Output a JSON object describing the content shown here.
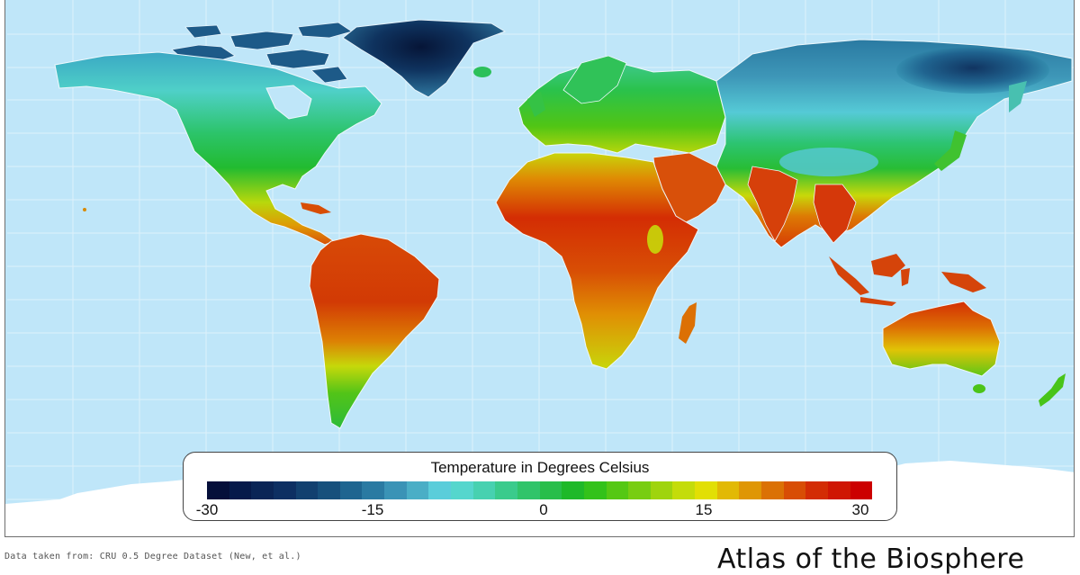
{
  "map": {
    "title": "Temperature in Degrees Celsius",
    "ocean_color": "#bfe6f9",
    "gridline_color": "#dff1fb",
    "antarctica_color": "#ffffff",
    "border_color": "#ffffff"
  },
  "legend": {
    "title": "Temperature in Degrees Celsius",
    "ticks": [
      {
        "label": "-30",
        "value": -30
      },
      {
        "label": "-15",
        "value": -15
      },
      {
        "label": "0",
        "value": 0
      },
      {
        "label": "15",
        "value": 15
      },
      {
        "label": "30",
        "value": 30
      }
    ],
    "range": [
      -30,
      30
    ],
    "bins": [
      "#050f3a",
      "#061a4a",
      "#0a2556",
      "#0d2f62",
      "#12406f",
      "#17507c",
      "#1e6590",
      "#2a7aa2",
      "#3a93b6",
      "#4aaec6",
      "#5acdda",
      "#55d6cd",
      "#47d1b0",
      "#3acb8c",
      "#30c46a",
      "#28be4a",
      "#1eb929",
      "#33c21a",
      "#55c814",
      "#78cd12",
      "#9fd40e",
      "#c4dc0a",
      "#e2df04",
      "#e2b904",
      "#df9604",
      "#db7104",
      "#d84d04",
      "#d32c04",
      "#cf1603",
      "#cc0000"
    ]
  },
  "footer": {
    "source": "Data taken from: CRU 0.5 Degree Dataset (New, et al.)",
    "brand": "Atlas of the Biosphere"
  },
  "chart_data": {
    "type": "heatmap",
    "title": "Temperature in Degrees Celsius",
    "colorbar": {
      "min": -30,
      "max": 30,
      "tick_labels": [
        "-30",
        "-15",
        "0",
        "15",
        "30"
      ],
      "n_bins": 30,
      "colormap": "navy-blue-cyan-green-yellow-orange-red"
    },
    "regions_approx_celsius": [
      {
        "region": "Greenland interior",
        "value": -30
      },
      {
        "region": "Canadian Arctic Archipelago",
        "value": -20
      },
      {
        "region": "Northern Canada / Alaska",
        "value": -8
      },
      {
        "region": "Siberia (east)",
        "value": -15
      },
      {
        "region": "Continental USA",
        "value": 10
      },
      {
        "region": "Mexico",
        "value": 20
      },
      {
        "region": "Europe",
        "value": 8
      },
      {
        "region": "Tibetan Plateau",
        "value": -3
      },
      {
        "region": "North Africa / Sahara",
        "value": 25
      },
      {
        "region": "West Africa / Sahel",
        "value": 28
      },
      {
        "region": "Arabian Peninsula",
        "value": 26
      },
      {
        "region": "India",
        "value": 26
      },
      {
        "region": "Southeast Asia",
        "value": 26
      },
      {
        "region": "Amazon Basin",
        "value": 27
      },
      {
        "region": "Patagonia / Andes",
        "value": 6
      },
      {
        "region": "Southern Africa",
        "value": 18
      },
      {
        "region": "Northern Australia",
        "value": 27
      },
      {
        "region": "Southern Australia",
        "value": 15
      },
      {
        "region": "New Zealand",
        "value": 10
      },
      {
        "region": "Antarctica",
        "value": null
      }
    ],
    "source": "CRU 0.5 Degree Dataset (New, et al.)",
    "grid": true
  }
}
